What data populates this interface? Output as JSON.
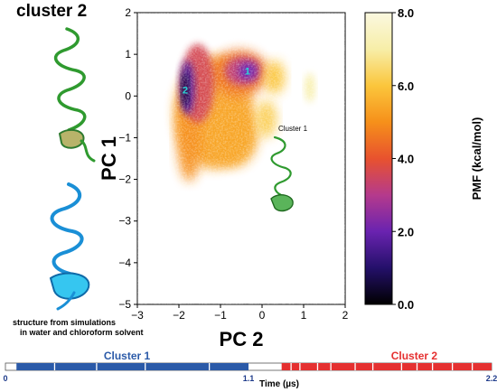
{
  "chart_data": [
    {
      "type": "heatmap",
      "title": "",
      "xlabel": "PC 2",
      "ylabel": "PC 1",
      "xlim": [
        -3,
        2
      ],
      "ylim": [
        -5,
        2
      ],
      "x_ticks": [
        -3,
        -2,
        -1,
        0,
        1,
        2
      ],
      "y_ticks": [
        -5,
        -4,
        -3,
        -2,
        -1,
        0,
        1,
        2
      ],
      "x_tick_labels": [
        "−3",
        "−2",
        "−1",
        "0",
        "1",
        "2"
      ],
      "y_tick_labels": [
        "−5",
        "−4",
        "−3",
        "−2",
        "−1",
        "0",
        "1",
        "2"
      ],
      "colorbar": {
        "label": "PMF (kcal/mol)",
        "min": 0.0,
        "max": 8.0,
        "ticks": [
          0.0,
          2.0,
          4.0,
          6.0,
          8.0
        ],
        "tick_labels": [
          "0.0",
          "2.0",
          "4.0",
          "6.0",
          "8.0"
        ],
        "colors": [
          "#000000",
          "#24106a",
          "#6a23b0",
          "#b53a8c",
          "#e8522e",
          "#f6901a",
          "#fbc63c",
          "#f7eea8",
          "#fbf8e0"
        ]
      },
      "minima": [
        {
          "label": "1",
          "x": -0.35,
          "y": 0.6
        },
        {
          "label": "2",
          "x": -1.85,
          "y": 0.15
        }
      ],
      "grid": false
    },
    {
      "type": "bar",
      "xlabel": "Time (µs)",
      "x_ticks": [
        0,
        1.1,
        2.2
      ],
      "x_tick_labels": [
        "0",
        "1.1",
        "2.2"
      ],
      "series": [
        {
          "name": "Cluster 1",
          "color": "#2b5aa8"
        },
        {
          "name": "Cluster 2",
          "color": "#e53030"
        }
      ]
    }
  ],
  "annotations": {
    "cluster2_title": "cluster 2",
    "cluster1_inset_label": "Cluster 1",
    "structure_caption_line1": "structure from simulations",
    "structure_caption_line2": "in water and chloroform solvent"
  },
  "icons": [
    "green-helix-icon",
    "blue-helix-icon",
    "green-helix-small-icon"
  ]
}
